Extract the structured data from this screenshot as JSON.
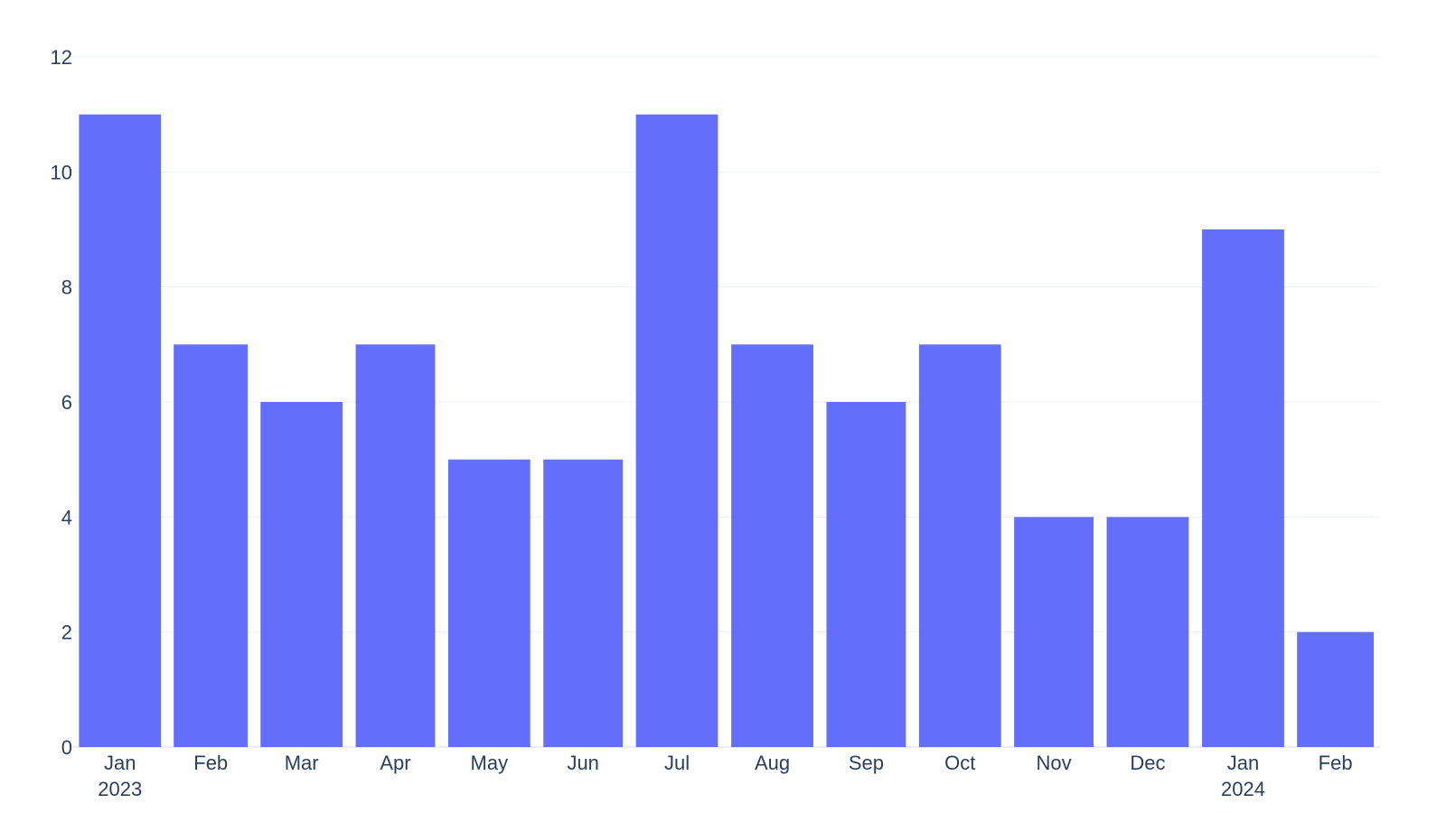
{
  "chart_data": {
    "type": "bar",
    "categories": [
      "2023-01",
      "2023-02",
      "2023-03",
      "2023-04",
      "2023-05",
      "2023-06",
      "2023-07",
      "2023-08",
      "2023-09",
      "2023-10",
      "2023-11",
      "2023-12",
      "2024-01",
      "2024-02"
    ],
    "values": [
      11,
      7,
      6,
      7,
      5,
      5,
      11,
      7,
      6,
      7,
      4,
      4,
      9,
      2
    ],
    "x_tick_labels": [
      {
        "month": "Jan",
        "year": "2023"
      },
      {
        "month": "Feb",
        "year": ""
      },
      {
        "month": "Mar",
        "year": ""
      },
      {
        "month": "Apr",
        "year": ""
      },
      {
        "month": "May",
        "year": ""
      },
      {
        "month": "Jun",
        "year": ""
      },
      {
        "month": "Jul",
        "year": ""
      },
      {
        "month": "Aug",
        "year": ""
      },
      {
        "month": "Sep",
        "year": ""
      },
      {
        "month": "Oct",
        "year": ""
      },
      {
        "month": "Nov",
        "year": ""
      },
      {
        "month": "Dec",
        "year": ""
      },
      {
        "month": "Jan",
        "year": "2024"
      },
      {
        "month": "Feb",
        "year": ""
      }
    ],
    "y_ticks": [
      0,
      2,
      4,
      6,
      8,
      10,
      12
    ],
    "ylim": [
      0,
      12
    ],
    "title": "",
    "xlabel": "",
    "ylabel": "",
    "grid": true,
    "bar_color": "#636efa",
    "grid_color": "#ebf0f8",
    "text_color": "#2a3f5f"
  }
}
